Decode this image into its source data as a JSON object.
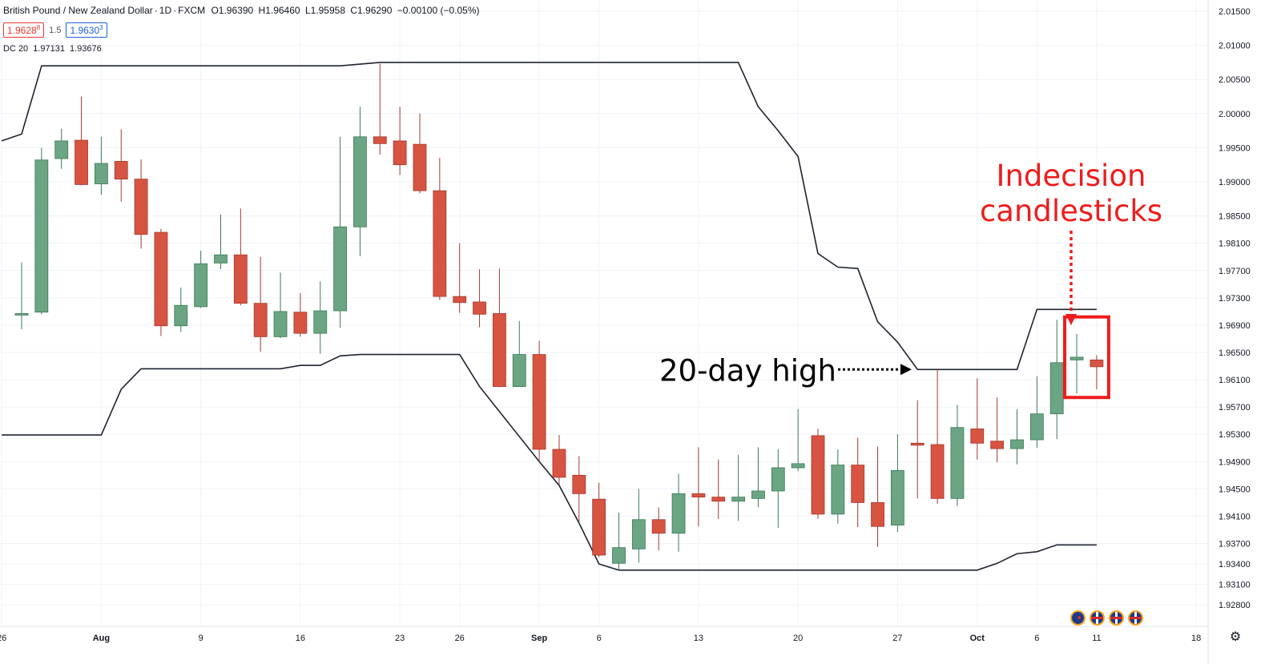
{
  "header": {
    "symbol": "British Pound / New Zealand Dollar",
    "interval": "1D",
    "source": "FXCM",
    "open_label": "O",
    "open": "1.96390",
    "high_label": "H",
    "high": "1.96460",
    "low_label": "L",
    "low": "1.95958",
    "close_label": "C",
    "close": "1.96290",
    "change": "−0.00100 (−0.05%)"
  },
  "quotes": {
    "sell": "1.9628",
    "sell_sup": "8",
    "spread": "1.5",
    "buy": "1.9630",
    "buy_sup": "3"
  },
  "indicator": {
    "name": "DC 20",
    "upper": "1.97131",
    "lower": "1.93676"
  },
  "colors": {
    "up": "#6ba583",
    "down": "#d75442",
    "wick_up": "#3c7a59",
    "wick_down": "#a33a2c",
    "channel": "#1f2430",
    "annotation_red": "#ee1c1c",
    "annotation_black": "#000000"
  },
  "icons": [
    "nz-flag-icon",
    "uk-flag-icon",
    "uk-flag-icon",
    "uk-flag-icon",
    "settings-gear-icon"
  ],
  "chart_data": {
    "type": "candlestick",
    "title": "",
    "ylim": [
      1.9264,
      2.0166
    ],
    "y_ticks": [
      "2.01500",
      "2.01000",
      "2.00500",
      "2.00000",
      "1.99500",
      "1.99000",
      "1.98500",
      "1.98100",
      "1.97700",
      "1.97300",
      "1.96900",
      "1.96500",
      "1.96100",
      "1.95700",
      "1.95300",
      "1.94900",
      "1.94500",
      "1.94100",
      "1.93700",
      "1.93400",
      "1.93100",
      "1.92800"
    ],
    "x_ticks": [
      {
        "label": "26",
        "bar": -1
      },
      {
        "label": "Aug",
        "bar": 4
      },
      {
        "label": "9",
        "bar": 9
      },
      {
        "label": "16",
        "bar": 14
      },
      {
        "label": "23",
        "bar": 19
      },
      {
        "label": "26",
        "bar": 22
      },
      {
        "label": "Sep",
        "bar": 26
      },
      {
        "label": "6",
        "bar": 29
      },
      {
        "label": "13",
        "bar": 34
      },
      {
        "label": "20",
        "bar": 39
      },
      {
        "label": "27",
        "bar": 44
      },
      {
        "label": "Oct",
        "bar": 48
      },
      {
        "label": "6",
        "bar": 51
      },
      {
        "label": "11",
        "bar": 54
      },
      {
        "label": "18",
        "bar": 59
      }
    ],
    "candles": [
      {
        "o": 1.9705,
        "h": 1.9782,
        "l": 1.9684,
        "c": 1.9707
      },
      {
        "o": 1.9709,
        "h": 1.995,
        "l": 1.9706,
        "c": 1.9932
      },
      {
        "o": 1.9934,
        "h": 1.9978,
        "l": 1.9919,
        "c": 1.996
      },
      {
        "o": 1.9961,
        "h": 2.0025,
        "l": 1.9895,
        "c": 1.9896
      },
      {
        "o": 1.9897,
        "h": 1.9966,
        "l": 1.9881,
        "c": 1.9927
      },
      {
        "o": 1.993,
        "h": 1.9977,
        "l": 1.9871,
        "c": 1.9904
      },
      {
        "o": 1.9904,
        "h": 1.9933,
        "l": 1.9802,
        "c": 1.9823
      },
      {
        "o": 1.9826,
        "h": 1.9831,
        "l": 1.9674,
        "c": 1.9689
      },
      {
        "o": 1.9689,
        "h": 1.9745,
        "l": 1.968,
        "c": 1.9719
      },
      {
        "o": 1.9717,
        "h": 1.9799,
        "l": 1.9715,
        "c": 1.978
      },
      {
        "o": 1.9781,
        "h": 1.9852,
        "l": 1.9772,
        "c": 1.9793
      },
      {
        "o": 1.9793,
        "h": 1.9861,
        "l": 1.9719,
        "c": 1.9722
      },
      {
        "o": 1.9722,
        "h": 1.979,
        "l": 1.9651,
        "c": 1.9673
      },
      {
        "o": 1.9673,
        "h": 1.9767,
        "l": 1.9671,
        "c": 1.971
      },
      {
        "o": 1.9709,
        "h": 1.9737,
        "l": 1.9673,
        "c": 1.9678
      },
      {
        "o": 1.9678,
        "h": 1.9754,
        "l": 1.9648,
        "c": 1.9711
      },
      {
        "o": 1.9711,
        "h": 1.9966,
        "l": 1.9686,
        "c": 1.9834
      },
      {
        "o": 1.9834,
        "h": 2.001,
        "l": 1.9791,
        "c": 1.9966
      },
      {
        "o": 1.9966,
        "h": 2.0073,
        "l": 1.994,
        "c": 1.9956
      },
      {
        "o": 1.996,
        "h": 2.001,
        "l": 1.991,
        "c": 1.9925
      },
      {
        "o": 1.9955,
        "h": 2.0,
        "l": 1.9883,
        "c": 1.9887
      },
      {
        "o": 1.9887,
        "h": 1.9935,
        "l": 1.9727,
        "c": 1.9732
      },
      {
        "o": 1.9732,
        "h": 1.981,
        "l": 1.9708,
        "c": 1.9723
      },
      {
        "o": 1.9724,
        "h": 1.9772,
        "l": 1.9687,
        "c": 1.9706
      },
      {
        "o": 1.9707,
        "h": 1.9773,
        "l": 1.9599,
        "c": 1.96
      },
      {
        "o": 1.96,
        "h": 1.9696,
        "l": 1.96,
        "c": 1.9647
      },
      {
        "o": 1.9647,
        "h": 1.9667,
        "l": 1.949,
        "c": 1.9508
      },
      {
        "o": 1.9508,
        "h": 1.9529,
        "l": 1.9456,
        "c": 1.9467
      },
      {
        "o": 1.947,
        "h": 1.9498,
        "l": 1.9402,
        "c": 1.9443
      },
      {
        "o": 1.9435,
        "h": 1.9459,
        "l": 1.935,
        "c": 1.9353
      },
      {
        "o": 1.9341,
        "h": 1.9415,
        "l": 1.9331,
        "c": 1.9364
      },
      {
        "o": 1.9362,
        "h": 1.945,
        "l": 1.9342,
        "c": 1.9405
      },
      {
        "o": 1.9405,
        "h": 1.9423,
        "l": 1.936,
        "c": 1.9385
      },
      {
        "o": 1.9385,
        "h": 1.9472,
        "l": 1.9358,
        "c": 1.9443
      },
      {
        "o": 1.9443,
        "h": 1.9511,
        "l": 1.9395,
        "c": 1.9438
      },
      {
        "o": 1.9438,
        "h": 1.9493,
        "l": 1.9406,
        "c": 1.9432
      },
      {
        "o": 1.9432,
        "h": 1.95,
        "l": 1.9403,
        "c": 1.9438
      },
      {
        "o": 1.9436,
        "h": 1.9511,
        "l": 1.9423,
        "c": 1.9447
      },
      {
        "o": 1.9447,
        "h": 1.9508,
        "l": 1.9393,
        "c": 1.9481
      },
      {
        "o": 1.9481,
        "h": 1.9567,
        "l": 1.9476,
        "c": 1.9487
      },
      {
        "o": 1.9528,
        "h": 1.9538,
        "l": 1.9406,
        "c": 1.9413
      },
      {
        "o": 1.9413,
        "h": 1.9508,
        "l": 1.9399,
        "c": 1.9485
      },
      {
        "o": 1.9485,
        "h": 1.9525,
        "l": 1.9394,
        "c": 1.943
      },
      {
        "o": 1.943,
        "h": 1.9512,
        "l": 1.9365,
        "c": 1.9395
      },
      {
        "o": 1.9397,
        "h": 1.953,
        "l": 1.9387,
        "c": 1.9477
      },
      {
        "o": 1.9517,
        "h": 1.958,
        "l": 1.9436,
        "c": 1.9514
      },
      {
        "o": 1.9515,
        "h": 1.9625,
        "l": 1.9428,
        "c": 1.9436
      },
      {
        "o": 1.9436,
        "h": 1.9573,
        "l": 1.9425,
        "c": 1.954
      },
      {
        "o": 1.9538,
        "h": 1.9612,
        "l": 1.9493,
        "c": 1.9517
      },
      {
        "o": 1.952,
        "h": 1.9584,
        "l": 1.9489,
        "c": 1.9509
      },
      {
        "o": 1.9509,
        "h": 1.9567,
        "l": 1.9486,
        "c": 1.9522
      },
      {
        "o": 1.9522,
        "h": 1.9615,
        "l": 1.951,
        "c": 1.956
      },
      {
        "o": 1.956,
        "h": 1.9698,
        "l": 1.9523,
        "c": 1.9635
      },
      {
        "o": 1.9639,
        "h": 1.9677,
        "l": 1.959,
        "c": 1.9643
      },
      {
        "o": 1.9639,
        "h": 1.9646,
        "l": 1.9596,
        "c": 1.9629
      }
    ],
    "donchian_upper": [
      {
        "bar": -1,
        "v": 1.996
      },
      {
        "bar": 0,
        "v": 1.997
      },
      {
        "bar": 1,
        "v": 2.007
      },
      {
        "bar": 16,
        "v": 2.007
      },
      {
        "bar": 18,
        "v": 2.0075
      },
      {
        "bar": 36,
        "v": 2.0075
      },
      {
        "bar": 37,
        "v": 2.001
      },
      {
        "bar": 38,
        "v": 1.9975
      },
      {
        "bar": 39,
        "v": 1.9937
      },
      {
        "bar": 40,
        "v": 1.9795
      },
      {
        "bar": 41,
        "v": 1.9775
      },
      {
        "bar": 42,
        "v": 1.9773
      },
      {
        "bar": 43,
        "v": 1.9695
      },
      {
        "bar": 44,
        "v": 1.9665
      },
      {
        "bar": 45,
        "v": 1.9625
      },
      {
        "bar": 50,
        "v": 1.9625
      },
      {
        "bar": 51,
        "v": 1.9713
      },
      {
        "bar": 54,
        "v": 1.9713
      }
    ],
    "donchian_lower": [
      {
        "bar": -1,
        "v": 1.9529
      },
      {
        "bar": 4,
        "v": 1.9529
      },
      {
        "bar": 5,
        "v": 1.9596
      },
      {
        "bar": 6,
        "v": 1.9626
      },
      {
        "bar": 13,
        "v": 1.9626
      },
      {
        "bar": 14,
        "v": 1.9631
      },
      {
        "bar": 15,
        "v": 1.9631
      },
      {
        "bar": 16,
        "v": 1.9645
      },
      {
        "bar": 17,
        "v": 1.9647
      },
      {
        "bar": 22,
        "v": 1.9647
      },
      {
        "bar": 23,
        "v": 1.96
      },
      {
        "bar": 26,
        "v": 1.949
      },
      {
        "bar": 27,
        "v": 1.9455
      },
      {
        "bar": 28,
        "v": 1.94
      },
      {
        "bar": 29,
        "v": 1.934
      },
      {
        "bar": 30,
        "v": 1.9331
      },
      {
        "bar": 48,
        "v": 1.9331
      },
      {
        "bar": 49,
        "v": 1.9341
      },
      {
        "bar": 50,
        "v": 1.9355
      },
      {
        "bar": 51,
        "v": 1.9358
      },
      {
        "bar": 52,
        "v": 1.9368
      },
      {
        "bar": 54,
        "v": 1.9368
      }
    ],
    "annotations": {
      "high_label": "20-day high",
      "indecision_line1": "Indecision",
      "indecision_line2": "candlesticks"
    }
  }
}
